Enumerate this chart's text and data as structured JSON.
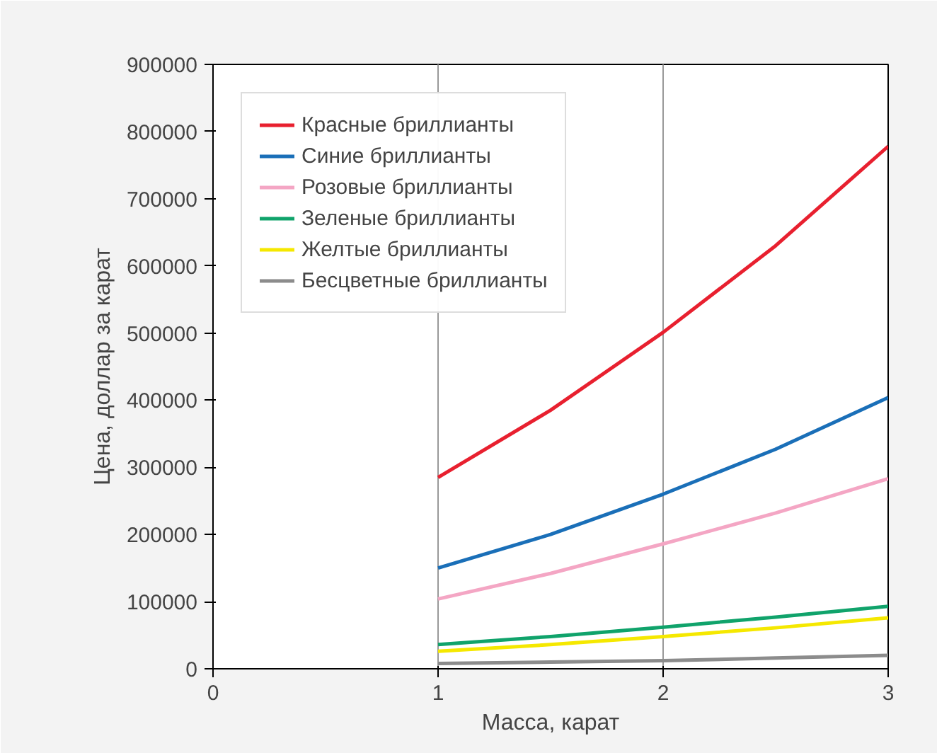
{
  "chart_data": {
    "type": "line",
    "xlabel": "Масса, карат",
    "ylabel": "Цена, доллар за карат",
    "x": [
      1,
      1.5,
      2,
      2.5,
      3
    ],
    "series": [
      {
        "name": "Красные бриллианты",
        "color": "#e8202f",
        "values": [
          285000,
          385000,
          501000,
          630000,
          778000
        ]
      },
      {
        "name": "Синие бриллианты",
        "color": "#1a6fb8",
        "values": [
          150000,
          200000,
          260000,
          327000,
          404000
        ]
      },
      {
        "name": "Розовые бриллианты",
        "color": "#f4a6c4",
        "values": [
          104000,
          142000,
          186000,
          232000,
          283000
        ]
      },
      {
        "name": "Зеленые бриллианты",
        "color": "#10a36b",
        "values": [
          36000,
          48000,
          62000,
          77000,
          93000
        ]
      },
      {
        "name": "Желтые бриллианты",
        "color": "#f5e800",
        "values": [
          26000,
          36000,
          48000,
          61000,
          76000
        ]
      },
      {
        "name": "Бесцветные бриллианты",
        "color": "#8c8c8c",
        "values": [
          8000,
          10000,
          12000,
          16000,
          20000
        ]
      }
    ],
    "xlim": [
      0,
      3
    ],
    "xticks": [
      0,
      1,
      2,
      3
    ],
    "ylim": [
      0,
      900000
    ],
    "yticks": [
      0,
      100000,
      200000,
      300000,
      400000,
      500000,
      600000,
      700000,
      800000,
      900000
    ],
    "grid": "x",
    "legend": "top left"
  }
}
